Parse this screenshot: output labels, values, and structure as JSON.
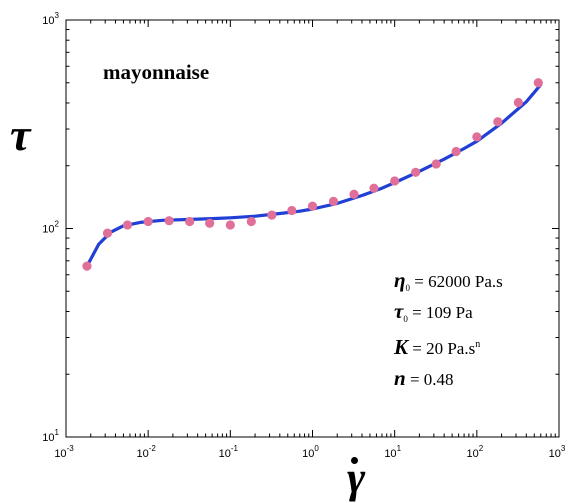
{
  "chart_data": {
    "type": "scatter",
    "title": "mayonnaise",
    "xlabel": "γ̇",
    "ylabel": "τ",
    "xscale": "log",
    "yscale": "log",
    "xlim": [
      0.001,
      1000
    ],
    "ylim": [
      10,
      1000
    ],
    "x_ticks": [
      {
        "base": "10",
        "exp": "-3"
      },
      {
        "base": "10",
        "exp": "-2"
      },
      {
        "base": "10",
        "exp": "-1"
      },
      {
        "base": "10",
        "exp": "0"
      },
      {
        "base": "10",
        "exp": "1"
      },
      {
        "base": "10",
        "exp": "2"
      },
      {
        "base": "10",
        "exp": "3"
      }
    ],
    "y_ticks": [
      {
        "base": "10",
        "exp": "1"
      },
      {
        "base": "10",
        "exp": "2"
      },
      {
        "base": "10",
        "exp": "3"
      }
    ],
    "grid": false,
    "series": [
      {
        "kind": "points",
        "color": "#e0709a",
        "points": [
          [
            0.0018,
            66
          ],
          [
            0.0032,
            95
          ],
          [
            0.0056,
            104
          ],
          [
            0.01,
            108
          ],
          [
            0.018,
            109
          ],
          [
            0.032,
            108
          ],
          [
            0.056,
            106
          ],
          [
            0.1,
            104
          ],
          [
            0.18,
            108
          ],
          [
            0.32,
            116
          ],
          [
            0.56,
            122
          ],
          [
            1.0,
            128
          ],
          [
            1.8,
            135
          ],
          [
            3.2,
            146
          ],
          [
            5.6,
            156
          ],
          [
            10,
            169
          ],
          [
            18,
            186
          ],
          [
            32,
            204
          ],
          [
            56,
            234
          ],
          [
            100,
            275
          ],
          [
            180,
            325
          ],
          [
            320,
            402
          ],
          [
            560,
            500
          ]
        ]
      },
      {
        "kind": "fit-curve",
        "color": "#1f3fd6",
        "points": [
          [
            0.0018,
            66
          ],
          [
            0.0025,
            84
          ],
          [
            0.0035,
            96
          ],
          [
            0.005,
            103
          ],
          [
            0.008,
            107
          ],
          [
            0.015,
            109.5
          ],
          [
            0.03,
            110.5
          ],
          [
            0.06,
            111.5
          ],
          [
            0.1,
            112.5
          ],
          [
            0.2,
            114.5
          ],
          [
            0.4,
            118
          ],
          [
            0.7,
            121
          ],
          [
            1.0,
            124
          ],
          [
            2.0,
            132
          ],
          [
            4.0,
            144
          ],
          [
            7.0,
            156
          ],
          [
            10,
            166
          ],
          [
            20,
            188
          ],
          [
            40,
            215
          ],
          [
            70,
            242
          ],
          [
            100,
            262
          ],
          [
            200,
            320
          ],
          [
            400,
            405
          ],
          [
            600,
            490
          ]
        ]
      }
    ],
    "annotations": {
      "eta": {
        "symbol": "η",
        "sub": "0",
        "text": " = 62000 Pa.s"
      },
      "tau": {
        "symbol": "τ",
        "sub": "0",
        "text": " = 109 Pa"
      },
      "K": {
        "symbol": "K",
        "text": " = 20 Pa.s",
        "sup": "n"
      },
      "n": {
        "symbol": "n",
        "text": " = 0.48"
      }
    }
  }
}
